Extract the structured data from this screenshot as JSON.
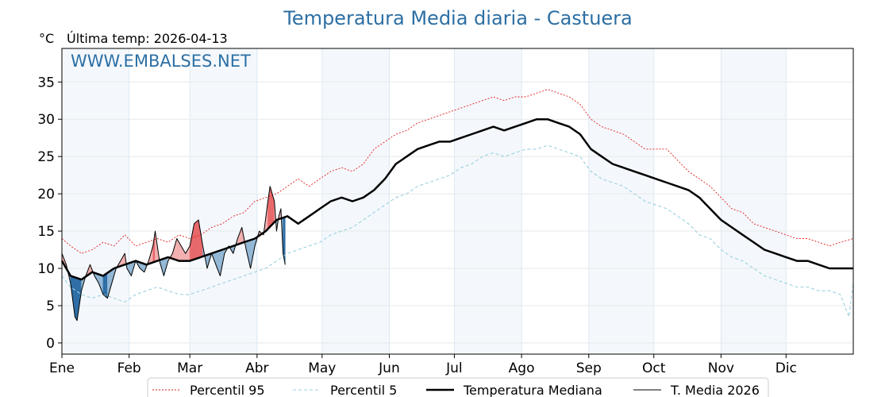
{
  "chart_data": {
    "type": "line",
    "title": "Temperatura Media diaria - Castuera",
    "unit_label": "°C",
    "last_temp_label": "Última temp: 2026-04-13",
    "watermark": "WWW.EMBALSES.NET",
    "ylim": [
      -1.5,
      39.5
    ],
    "yticks": [
      0,
      5,
      10,
      15,
      20,
      25,
      30,
      35
    ],
    "x_day_range": [
      1,
      366
    ],
    "months": [
      {
        "label": "Ene",
        "day": 1
      },
      {
        "label": "Feb",
        "day": 32
      },
      {
        "label": "Mar",
        "day": 60
      },
      {
        "label": "Abr",
        "day": 91
      },
      {
        "label": "May",
        "day": 121
      },
      {
        "label": "Jun",
        "day": 152
      },
      {
        "label": "Jul",
        "day": 182
      },
      {
        "label": "Ago",
        "day": 213
      },
      {
        "label": "Sep",
        "day": 244
      },
      {
        "label": "Oct",
        "day": 274
      },
      {
        "label": "Nov",
        "day": 305
      },
      {
        "label": "Dic",
        "day": 335
      }
    ],
    "grid": true,
    "legend_placement": "bottom",
    "series": [
      {
        "name": "Percentil 95",
        "color": "#e41a1c",
        "style": "dotted",
        "points": [
          [
            1,
            14
          ],
          [
            5,
            13
          ],
          [
            10,
            12
          ],
          [
            15,
            12.5
          ],
          [
            20,
            13.5
          ],
          [
            25,
            13
          ],
          [
            30,
            14.5
          ],
          [
            35,
            13
          ],
          [
            40,
            13.5
          ],
          [
            45,
            14
          ],
          [
            50,
            13.5
          ],
          [
            55,
            14.5
          ],
          [
            60,
            14
          ],
          [
            65,
            14.5
          ],
          [
            70,
            15.5
          ],
          [
            75,
            16
          ],
          [
            80,
            17
          ],
          [
            85,
            17.5
          ],
          [
            90,
            19
          ],
          [
            95,
            19.5
          ],
          [
            100,
            20
          ],
          [
            105,
            21
          ],
          [
            110,
            22
          ],
          [
            115,
            21
          ],
          [
            120,
            22
          ],
          [
            125,
            23
          ],
          [
            130,
            23.5
          ],
          [
            135,
            23
          ],
          [
            140,
            24
          ],
          [
            145,
            26
          ],
          [
            150,
            27
          ],
          [
            155,
            28
          ],
          [
            160,
            28.5
          ],
          [
            165,
            29.5
          ],
          [
            170,
            30
          ],
          [
            175,
            30.5
          ],
          [
            180,
            31
          ],
          [
            185,
            31.5
          ],
          [
            190,
            32
          ],
          [
            195,
            32.5
          ],
          [
            200,
            33
          ],
          [
            205,
            32.5
          ],
          [
            210,
            33
          ],
          [
            215,
            33
          ],
          [
            220,
            33.5
          ],
          [
            225,
            34
          ],
          [
            230,
            33.5
          ],
          [
            235,
            33
          ],
          [
            240,
            32
          ],
          [
            245,
            30
          ],
          [
            250,
            29
          ],
          [
            255,
            28.5
          ],
          [
            260,
            28
          ],
          [
            265,
            27
          ],
          [
            270,
            26
          ],
          [
            275,
            26
          ],
          [
            280,
            26
          ],
          [
            285,
            24.5
          ],
          [
            290,
            23
          ],
          [
            295,
            22
          ],
          [
            300,
            21
          ],
          [
            305,
            19.5
          ],
          [
            310,
            18
          ],
          [
            315,
            17.5
          ],
          [
            320,
            16
          ],
          [
            325,
            15.5
          ],
          [
            330,
            15
          ],
          [
            335,
            14.5
          ],
          [
            340,
            14
          ],
          [
            345,
            14
          ],
          [
            350,
            13.5
          ],
          [
            355,
            13
          ],
          [
            360,
            13.5
          ],
          [
            366,
            14
          ]
        ]
      },
      {
        "name": "Percentil 5",
        "color": "#9ad0e0",
        "style": "dashed",
        "points": [
          [
            1,
            9
          ],
          [
            5,
            7.5
          ],
          [
            10,
            6.5
          ],
          [
            15,
            6
          ],
          [
            20,
            6.5
          ],
          [
            25,
            6
          ],
          [
            30,
            5.5
          ],
          [
            35,
            6.5
          ],
          [
            40,
            7
          ],
          [
            45,
            7.5
          ],
          [
            50,
            7
          ],
          [
            55,
            6.5
          ],
          [
            60,
            6.5
          ],
          [
            65,
            7
          ],
          [
            70,
            7.5
          ],
          [
            75,
            8
          ],
          [
            80,
            8.5
          ],
          [
            85,
            9
          ],
          [
            90,
            9.5
          ],
          [
            95,
            10
          ],
          [
            100,
            11
          ],
          [
            105,
            12
          ],
          [
            110,
            12.5
          ],
          [
            115,
            13
          ],
          [
            120,
            13.5
          ],
          [
            125,
            14.5
          ],
          [
            130,
            15
          ],
          [
            135,
            15.5
          ],
          [
            140,
            16.5
          ],
          [
            145,
            17.5
          ],
          [
            150,
            18.5
          ],
          [
            155,
            19.5
          ],
          [
            160,
            20
          ],
          [
            165,
            21
          ],
          [
            170,
            21.5
          ],
          [
            175,
            22
          ],
          [
            180,
            22.5
          ],
          [
            185,
            23.5
          ],
          [
            190,
            24
          ],
          [
            195,
            25
          ],
          [
            200,
            25.5
          ],
          [
            205,
            25
          ],
          [
            210,
            25.5
          ],
          [
            215,
            26
          ],
          [
            220,
            26
          ],
          [
            225,
            26.5
          ],
          [
            230,
            26
          ],
          [
            235,
            25.5
          ],
          [
            240,
            25
          ],
          [
            245,
            23
          ],
          [
            250,
            22
          ],
          [
            255,
            21.5
          ],
          [
            260,
            21
          ],
          [
            265,
            20
          ],
          [
            270,
            19
          ],
          [
            275,
            18.5
          ],
          [
            280,
            18
          ],
          [
            285,
            17
          ],
          [
            290,
            16
          ],
          [
            295,
            14.5
          ],
          [
            300,
            14
          ],
          [
            305,
            12.5
          ],
          [
            310,
            11.5
          ],
          [
            315,
            11
          ],
          [
            320,
            10
          ],
          [
            325,
            9
          ],
          [
            330,
            8.5
          ],
          [
            335,
            8
          ],
          [
            340,
            7.5
          ],
          [
            345,
            7.5
          ],
          [
            350,
            7
          ],
          [
            355,
            7
          ],
          [
            360,
            6.5
          ],
          [
            364,
            3.5
          ],
          [
            366,
            8
          ]
        ]
      },
      {
        "name": "Temperatura Mediana",
        "color": "#000000",
        "style": "solid-thick",
        "points": [
          [
            1,
            11
          ],
          [
            5,
            9
          ],
          [
            10,
            8.5
          ],
          [
            15,
            9.5
          ],
          [
            20,
            9
          ],
          [
            25,
            10
          ],
          [
            30,
            10.5
          ],
          [
            35,
            11
          ],
          [
            40,
            10.5
          ],
          [
            45,
            11
          ],
          [
            50,
            11.5
          ],
          [
            55,
            11
          ],
          [
            60,
            11
          ],
          [
            65,
            11.5
          ],
          [
            70,
            12
          ],
          [
            75,
            12.5
          ],
          [
            80,
            13
          ],
          [
            85,
            13.5
          ],
          [
            90,
            14
          ],
          [
            95,
            15
          ],
          [
            100,
            16.5
          ],
          [
            105,
            17
          ],
          [
            110,
            16
          ],
          [
            115,
            17
          ],
          [
            120,
            18
          ],
          [
            125,
            19
          ],
          [
            130,
            19.5
          ],
          [
            135,
            19
          ],
          [
            140,
            19.5
          ],
          [
            145,
            20.5
          ],
          [
            150,
            22
          ],
          [
            155,
            24
          ],
          [
            160,
            25
          ],
          [
            165,
            26
          ],
          [
            170,
            26.5
          ],
          [
            175,
            27
          ],
          [
            180,
            27
          ],
          [
            185,
            27.5
          ],
          [
            190,
            28
          ],
          [
            195,
            28.5
          ],
          [
            200,
            29
          ],
          [
            205,
            28.5
          ],
          [
            210,
            29
          ],
          [
            215,
            29.5
          ],
          [
            220,
            30
          ],
          [
            225,
            30
          ],
          [
            230,
            29.5
          ],
          [
            235,
            29
          ],
          [
            240,
            28
          ],
          [
            245,
            26
          ],
          [
            250,
            25
          ],
          [
            255,
            24
          ],
          [
            260,
            23.5
          ],
          [
            265,
            23
          ],
          [
            270,
            22.5
          ],
          [
            275,
            22
          ],
          [
            280,
            21.5
          ],
          [
            285,
            21
          ],
          [
            290,
            20.5
          ],
          [
            295,
            19.5
          ],
          [
            300,
            18
          ],
          [
            305,
            16.5
          ],
          [
            310,
            15.5
          ],
          [
            315,
            14.5
          ],
          [
            320,
            13.5
          ],
          [
            325,
            12.5
          ],
          [
            330,
            12
          ],
          [
            335,
            11.5
          ],
          [
            340,
            11
          ],
          [
            345,
            11
          ],
          [
            350,
            10.5
          ],
          [
            355,
            10
          ],
          [
            360,
            10
          ],
          [
            366,
            10
          ]
        ]
      },
      {
        "name": "T. Media 2026",
        "color": "#000000",
        "style": "solid-thin",
        "points": [
          [
            1,
            12
          ],
          [
            3,
            10.5
          ],
          [
            5,
            8
          ],
          [
            7,
            3.5
          ],
          [
            8,
            3
          ],
          [
            10,
            7
          ],
          [
            12,
            9
          ],
          [
            14,
            10.5
          ],
          [
            16,
            9
          ],
          [
            18,
            8
          ],
          [
            20,
            6.5
          ],
          [
            22,
            6
          ],
          [
            24,
            8
          ],
          [
            26,
            10
          ],
          [
            28,
            11
          ],
          [
            30,
            12
          ],
          [
            31,
            10
          ],
          [
            33,
            9
          ],
          [
            35,
            11
          ],
          [
            37,
            10
          ],
          [
            39,
            9.5
          ],
          [
            41,
            11
          ],
          [
            43,
            13
          ],
          [
            44,
            15
          ],
          [
            46,
            11
          ],
          [
            48,
            9
          ],
          [
            50,
            11
          ],
          [
            52,
            12
          ],
          [
            54,
            14
          ],
          [
            56,
            13
          ],
          [
            58,
            12
          ],
          [
            60,
            13
          ],
          [
            62,
            16
          ],
          [
            64,
            16.5
          ],
          [
            66,
            13
          ],
          [
            68,
            10
          ],
          [
            70,
            12
          ],
          [
            72,
            10.5
          ],
          [
            74,
            9
          ],
          [
            76,
            12
          ],
          [
            78,
            13
          ],
          [
            80,
            12
          ],
          [
            82,
            14
          ],
          [
            84,
            15.5
          ],
          [
            86,
            12.5
          ],
          [
            88,
            10
          ],
          [
            90,
            13
          ],
          [
            92,
            15
          ],
          [
            94,
            14.5
          ],
          [
            96,
            19
          ],
          [
            97,
            21
          ],
          [
            99,
            19
          ],
          [
            100,
            15
          ],
          [
            101,
            17
          ],
          [
            102,
            18
          ],
          [
            103,
            12
          ],
          [
            104,
            10.5
          ]
        ]
      }
    ]
  }
}
